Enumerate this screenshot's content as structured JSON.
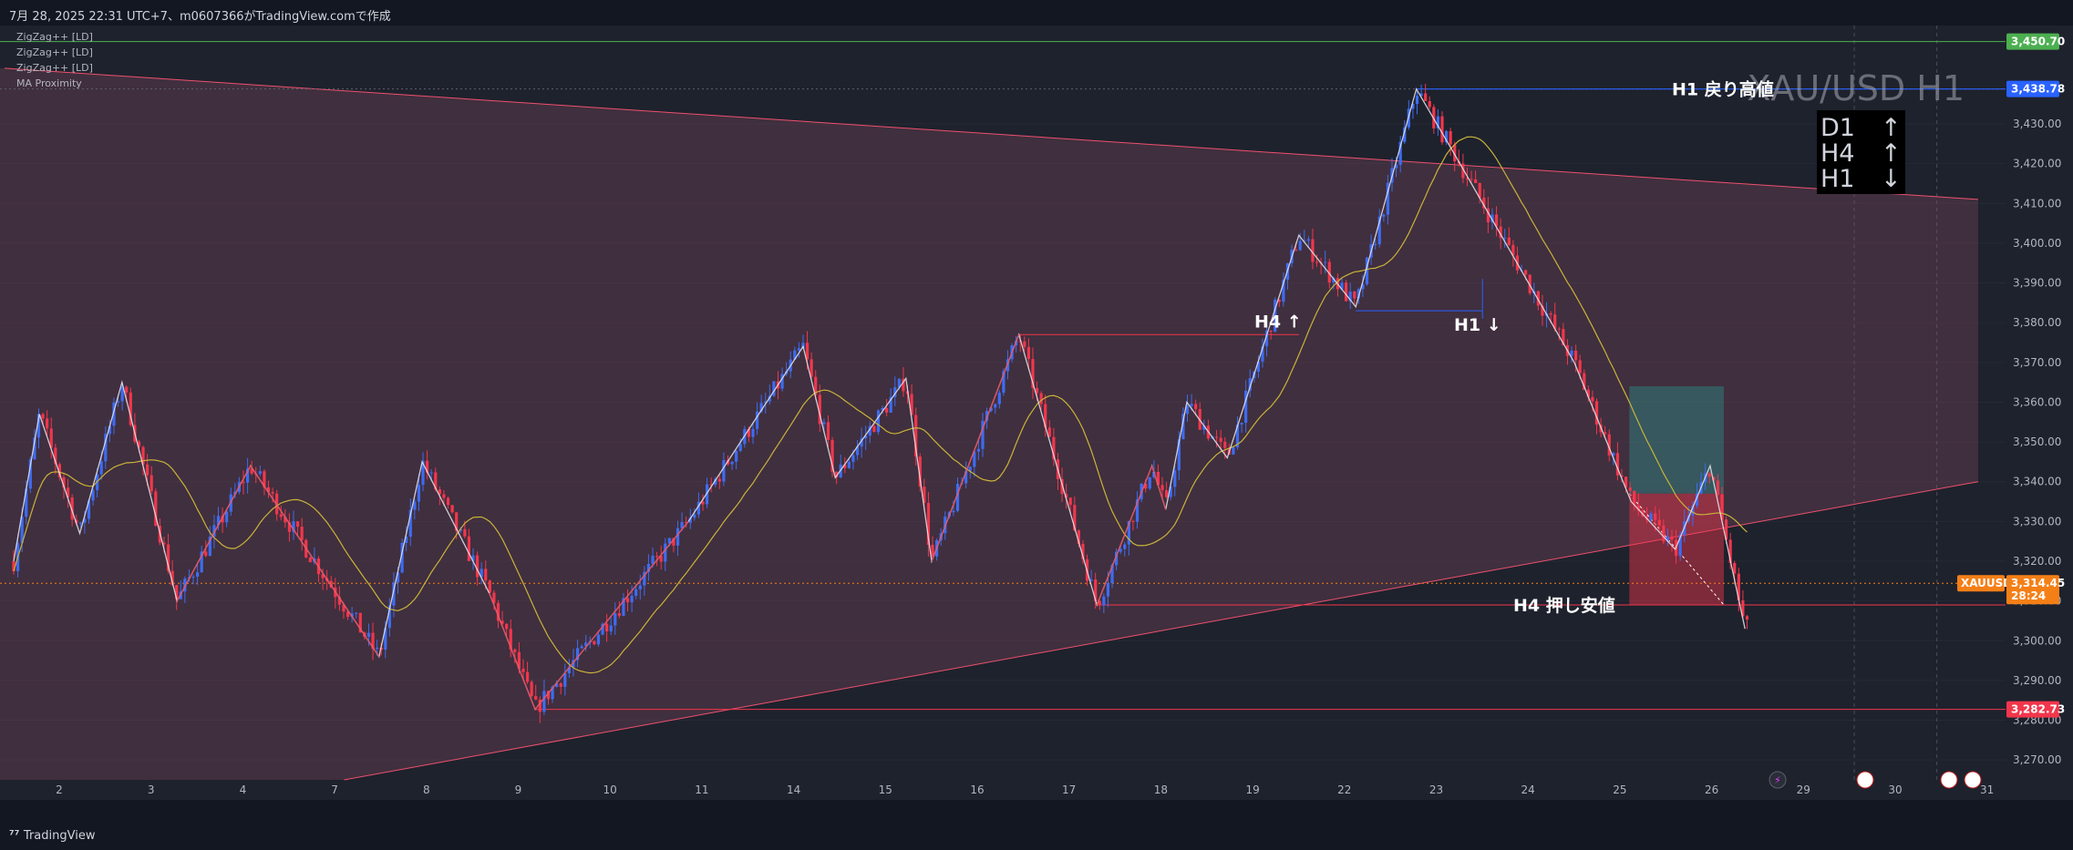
{
  "header": {
    "caption": "7月 28, 2025 22:31 UTC+7、m0607366がTradingView.comで作成"
  },
  "indicators": [
    "ZigZag++ [LD]",
    "ZigZag++ [LD]",
    "ZigZag++ [LD]",
    "MA Proximity"
  ],
  "watermark": "XAU/USD H1",
  "trend_box": {
    "rows": [
      {
        "tf": "D1",
        "arrow": "↑"
      },
      {
        "tf": "H4",
        "arrow": "↑"
      },
      {
        "tf": "H1",
        "arrow": "↓"
      }
    ]
  },
  "annotations": {
    "h1_high": "H1 戻り高値",
    "h4_low": "H4 押し安値",
    "h4_up": "H4 ↑",
    "h1_down": "H1 ↓"
  },
  "footer": {
    "brand": "TradingView"
  },
  "colors": {
    "bull": "#3d6cf2",
    "bear": "#f2364c",
    "ma": "#c9b33a",
    "zigzag": "#e8e8ee",
    "zone": "#f0506e",
    "green_line": "#4caf50",
    "blue_line": "#2962ff",
    "price_tag": "#f57f17"
  },
  "chart_data": {
    "type": "candlestick",
    "symbol": "XAUUSD",
    "timeframe": "H1",
    "ylim": [
      3265,
      3452
    ],
    "yticks": [
      3270,
      3280,
      3290,
      3300,
      3310,
      3320,
      3330,
      3340,
      3350,
      3360,
      3370,
      3380,
      3390,
      3400,
      3410,
      3420,
      3430
    ],
    "x_tick_labels": [
      "2",
      "3",
      "4",
      "7",
      "8",
      "9",
      "10",
      "11",
      "14",
      "15",
      "16",
      "17",
      "18",
      "19",
      "22",
      "23",
      "24",
      "25",
      "26",
      "29",
      "30",
      "31"
    ],
    "price_lines": [
      {
        "value": 3450.7,
        "label": "3,450.70",
        "color": "#4caf50"
      },
      {
        "value": 3438.78,
        "label": "3,438.78",
        "color": "#2962ff"
      },
      {
        "value": 3282.73,
        "label": "3,282.73",
        "color": "#f2364c"
      }
    ],
    "current_price": {
      "symbol": "XAUUSD",
      "value": 3314.45,
      "label": "3,314.45",
      "countdown": "28:24"
    },
    "zigzag_pivots": [
      {
        "day": 0.0,
        "price": 3320
      },
      {
        "day": 0.28,
        "price": 3357
      },
      {
        "day": 0.72,
        "price": 3327
      },
      {
        "day": 1.18,
        "price": 3365
      },
      {
        "day": 1.78,
        "price": 3310
      },
      {
        "day": 2.58,
        "price": 3344
      },
      {
        "day": 3.98,
        "price": 3296
      },
      {
        "day": 4.45,
        "price": 3345
      },
      {
        "day": 5.18,
        "price": 3312
      },
      {
        "day": 5.68,
        "price": 3282.73
      },
      {
        "day": 7.35,
        "price": 3330
      },
      {
        "day": 8.6,
        "price": 3374
      },
      {
        "day": 8.95,
        "price": 3341
      },
      {
        "day": 9.72,
        "price": 3366
      },
      {
        "day": 10.0,
        "price": 3320
      },
      {
        "day": 10.95,
        "price": 3377
      },
      {
        "day": 11.8,
        "price": 3309
      },
      {
        "day": 12.4,
        "price": 3344
      },
      {
        "day": 12.55,
        "price": 3333
      },
      {
        "day": 12.78,
        "price": 3360
      },
      {
        "day": 13.22,
        "price": 3346
      },
      {
        "day": 14.0,
        "price": 3402
      },
      {
        "day": 14.62,
        "price": 3384
      },
      {
        "day": 15.28,
        "price": 3438.78
      },
      {
        "day": 15.68,
        "price": 3423
      },
      {
        "day": 17.0,
        "price": 3370
      },
      {
        "day": 17.62,
        "price": 3335
      },
      {
        "day": 18.1,
        "price": 3323
      },
      {
        "day": 18.48,
        "price": 3344
      },
      {
        "day": 18.86,
        "price": 3303
      }
    ],
    "channel": {
      "upper": [
        {
          "day": -0.1,
          "price": 3444
        },
        {
          "day": 21.4,
          "price": 3411
        }
      ],
      "lower": [
        {
          "day": 3.6,
          "price": 3265
        },
        {
          "day": 21.4,
          "price": 3340
        }
      ]
    },
    "annotation_levels": {
      "h1_high": 3438.78,
      "h4_low": 3309,
      "h4_up": 3377,
      "h1_down": 3383
    }
  }
}
